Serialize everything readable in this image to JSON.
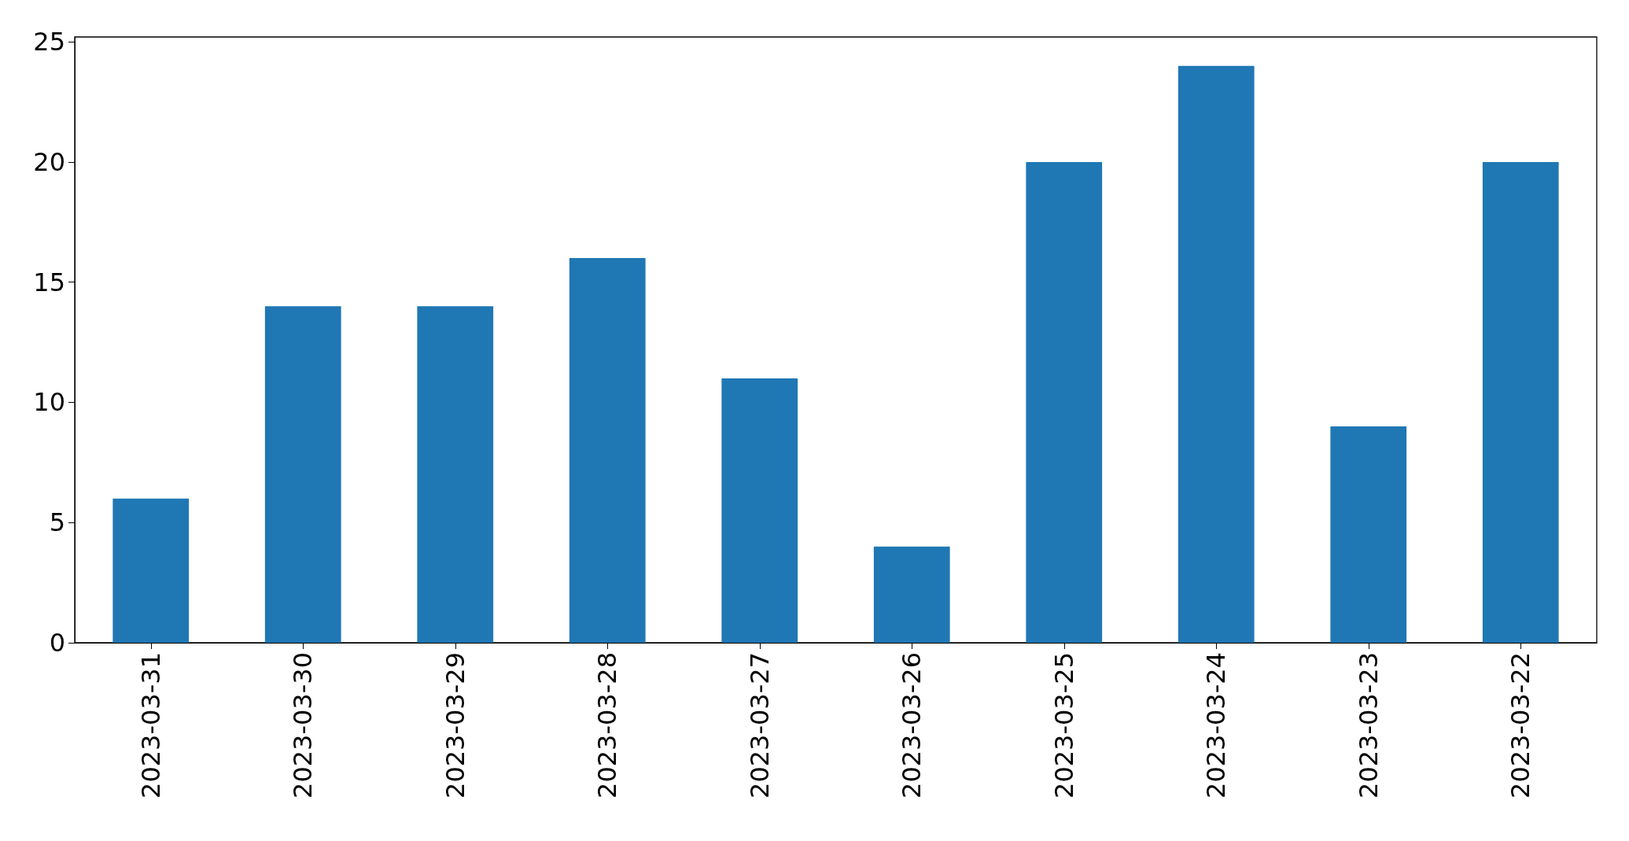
{
  "chart_data": {
    "type": "bar",
    "categories": [
      "2023-03-31",
      "2023-03-30",
      "2023-03-29",
      "2023-03-28",
      "2023-03-27",
      "2023-03-26",
      "2023-03-25",
      "2023-03-24",
      "2023-03-23",
      "2023-03-22"
    ],
    "values": [
      6,
      14,
      14,
      16,
      11,
      4,
      20,
      24,
      9,
      20
    ],
    "color": "#1f77b4",
    "ylim": [
      0,
      25.2
    ],
    "yticks": [
      0,
      5,
      10,
      15,
      20,
      25
    ]
  }
}
